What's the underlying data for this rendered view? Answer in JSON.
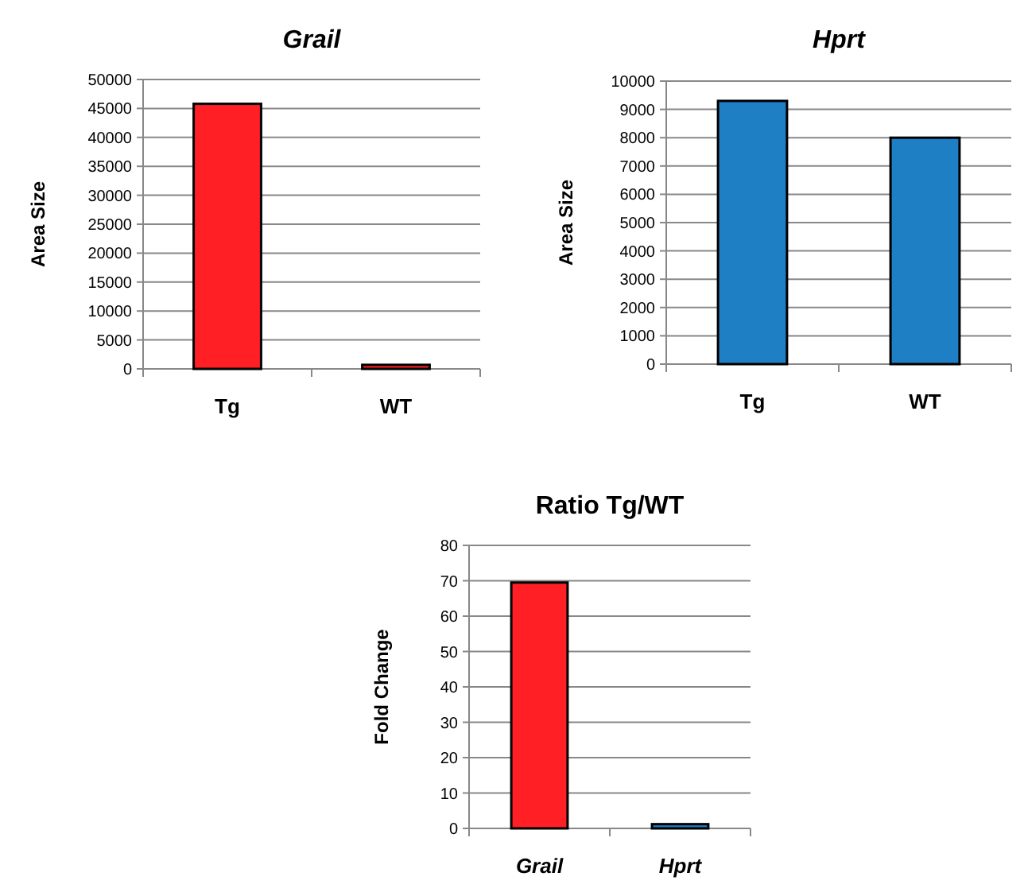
{
  "chart_data": [
    {
      "type": "bar",
      "title": "Grail",
      "ylabel": "Area Size",
      "categories": [
        "Tg",
        "WT"
      ],
      "values": [
        45800,
        700
      ],
      "color": "#ff1f25",
      "ylim": [
        0,
        50000
      ],
      "yticks": [
        0,
        5000,
        10000,
        15000,
        20000,
        25000,
        30000,
        35000,
        40000,
        45000,
        50000
      ],
      "grid": "y"
    },
    {
      "type": "bar",
      "title": "Hprt",
      "ylabel": "Area Size",
      "categories": [
        "Tg",
        "WT"
      ],
      "values": [
        9300,
        8000
      ],
      "color": "#1f7fc4",
      "ylim": [
        0,
        10000
      ],
      "yticks": [
        0,
        1000,
        2000,
        3000,
        4000,
        5000,
        6000,
        7000,
        8000,
        9000,
        10000
      ],
      "grid": "y"
    },
    {
      "type": "bar",
      "title": "Ratio Tg/WT",
      "ylabel": "Fold Change",
      "categories": [
        "Grail",
        "Hprt"
      ],
      "values": [
        69.5,
        1.2
      ],
      "colors": [
        "#ff1f25",
        "#1f7fc4"
      ],
      "ylim": [
        0,
        80
      ],
      "yticks": [
        0,
        10,
        20,
        30,
        40,
        50,
        60,
        70,
        80
      ],
      "grid": "y"
    }
  ]
}
